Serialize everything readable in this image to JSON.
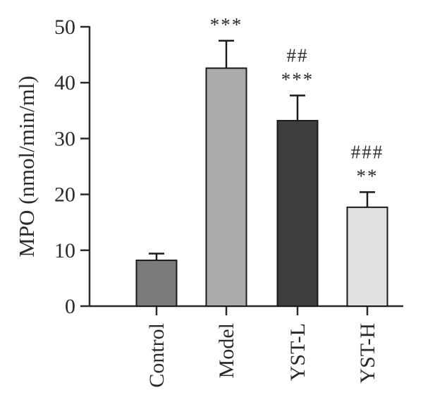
{
  "chart_data": {
    "type": "bar",
    "ylabel": "MPO (nmol/min/ml)",
    "ylim": [
      0,
      50
    ],
    "yticks": [
      "0",
      "10",
      "20",
      "30",
      "40",
      "50"
    ],
    "categories": [
      "Control",
      "Model",
      "YST-L",
      "YST-H"
    ],
    "values": [
      8.2,
      42.6,
      33.2,
      17.7
    ],
    "errors": [
      1.2,
      4.9,
      4.5,
      2.7
    ],
    "colors": [
      "#7b7b7b",
      "#ababab",
      "#3e3e3e",
      "#e2e2e2"
    ],
    "significance": [
      {
        "lines": []
      },
      {
        "lines": [
          "***"
        ]
      },
      {
        "lines": [
          "##",
          "***"
        ]
      },
      {
        "lines": [
          "###",
          "**"
        ]
      }
    ],
    "grid": false
  }
}
